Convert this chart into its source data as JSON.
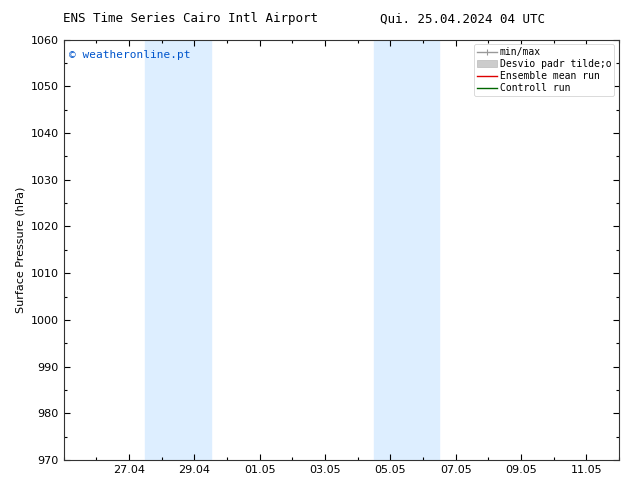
{
  "title_left": "ENS Time Series Cairo Intl Airport",
  "title_right": "Qui. 25.04.2024 04 UTC",
  "ylabel": "Surface Pressure (hPa)",
  "ylim": [
    970,
    1060
  ],
  "yticks": [
    970,
    980,
    990,
    1000,
    1010,
    1020,
    1030,
    1040,
    1050,
    1060
  ],
  "x_tick_labels": [
    "27.04",
    "29.04",
    "01.05",
    "03.05",
    "05.05",
    "07.05",
    "09.05",
    "11.05"
  ],
  "x_tick_positions": [
    2,
    4,
    6,
    8,
    10,
    12,
    14,
    16
  ],
  "xlim": [
    0,
    17
  ],
  "watermark": "© weatheronline.pt",
  "watermark_color": "#0055cc",
  "bg_color": "#ffffff",
  "plot_bg_color": "#ffffff",
  "shaded_bands": [
    {
      "x_start": 2.5,
      "x_end": 4.5,
      "color": "#ddeeff"
    },
    {
      "x_start": 9.5,
      "x_end": 11.5,
      "color": "#ddeeff"
    }
  ],
  "legend_entries": [
    {
      "label": "min/max",
      "color": "#999999",
      "linewidth": 1.0,
      "linestyle": "-",
      "type": "minmax"
    },
    {
      "label": "Desvio padr tilde;o",
      "color": "#cccccc",
      "linewidth": 5,
      "linestyle": "-",
      "type": "band"
    },
    {
      "label": "Ensemble mean run",
      "color": "#dd0000",
      "linewidth": 1.0,
      "linestyle": "-",
      "type": "line"
    },
    {
      "label": "Controll run",
      "color": "#006600",
      "linewidth": 1.0,
      "linestyle": "-",
      "type": "line"
    }
  ],
  "title_fontsize": 9,
  "axis_label_fontsize": 8,
  "tick_fontsize": 8,
  "legend_fontsize": 7,
  "watermark_fontsize": 8
}
